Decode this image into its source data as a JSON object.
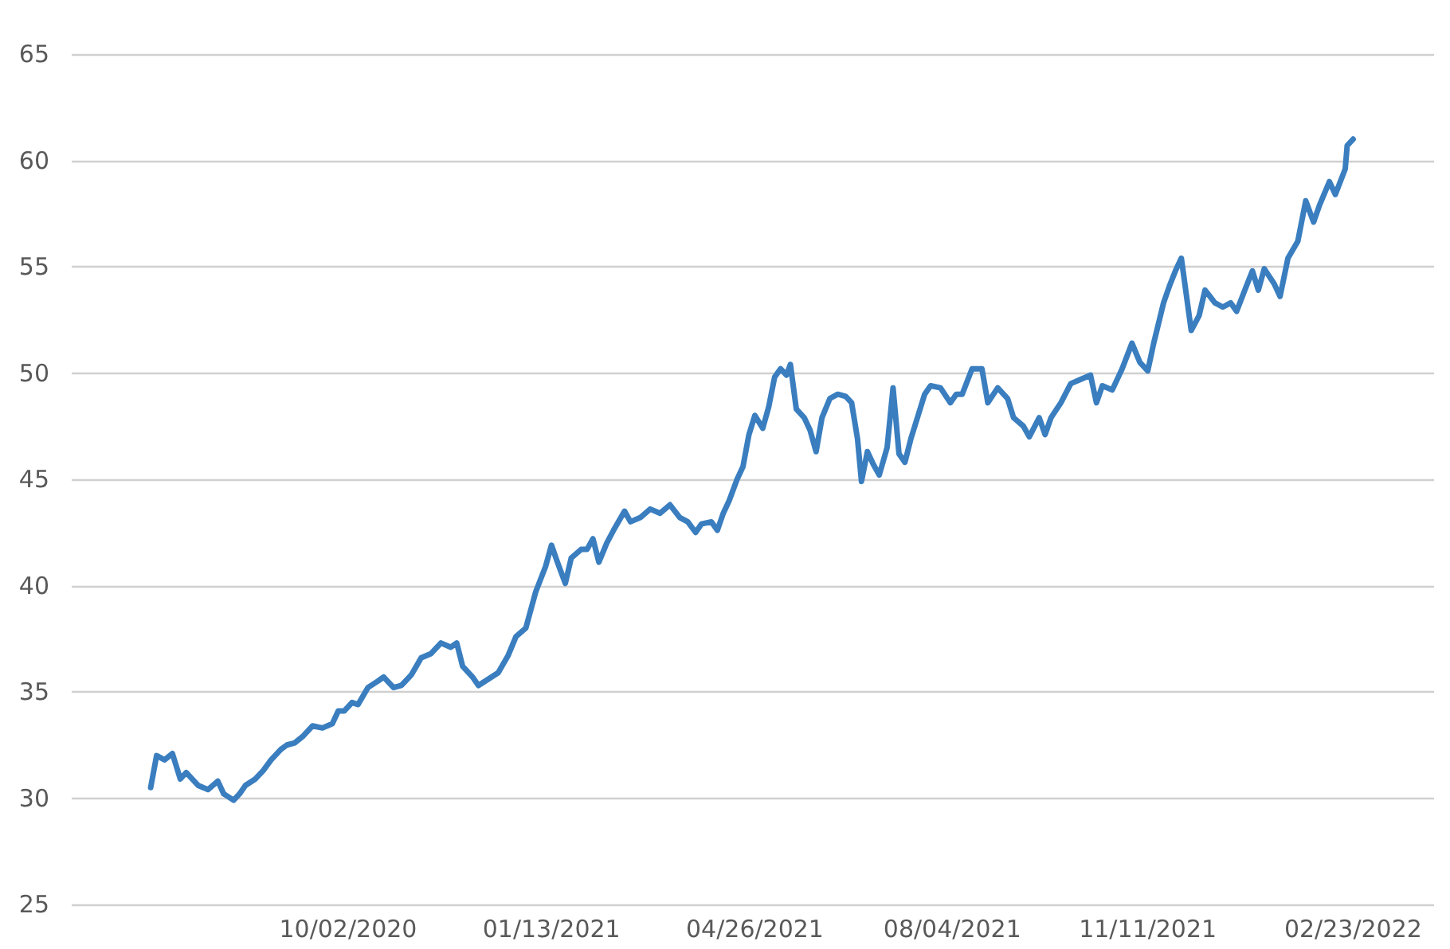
{
  "chart_data": {
    "type": "line",
    "color": "#3a7ebf",
    "grid": "y",
    "marker": "none",
    "line_style": "solid",
    "xlim": [
      "2020-05-15",
      "2022-04-05"
    ],
    "xticks": [
      {
        "value": "2020-10-02",
        "label": "10/02/2020"
      },
      {
        "value": "2021-01-13",
        "label": "01/13/2021"
      },
      {
        "value": "2021-04-26",
        "label": "04/26/2021"
      },
      {
        "value": "2021-08-04",
        "label": "08/04/2021"
      },
      {
        "value": "2021-11-11",
        "label": "11/11/2021"
      },
      {
        "value": "2022-02-23",
        "label": "02/23/2022"
      }
    ],
    "ylim": [
      25,
      65
    ],
    "yticks": [
      25,
      30,
      35,
      40,
      45,
      50,
      55,
      60,
      65
    ],
    "x": [
      "2020-06-24",
      "2020-06-27",
      "2020-07-01",
      "2020-07-05",
      "2020-07-09",
      "2020-07-12",
      "2020-07-15",
      "2020-07-18",
      "2020-07-23",
      "2020-07-28",
      "2020-07-31",
      "2020-08-05",
      "2020-08-08",
      "2020-08-11",
      "2020-08-16",
      "2020-08-20",
      "2020-08-24",
      "2020-08-29",
      "2020-09-01",
      "2020-09-05",
      "2020-09-09",
      "2020-09-14",
      "2020-09-19",
      "2020-09-24",
      "2020-09-27",
      "2020-09-30",
      "2020-10-04",
      "2020-10-07",
      "2020-10-12",
      "2020-10-17",
      "2020-10-20",
      "2020-10-25",
      "2020-10-29",
      "2020-11-03",
      "2020-11-08",
      "2020-11-13",
      "2020-11-18",
      "2020-11-23",
      "2020-11-26",
      "2020-11-29",
      "2020-12-04",
      "2020-12-07",
      "2020-12-12",
      "2020-12-17",
      "2020-12-22",
      "2020-12-26",
      "2020-12-31",
      "2021-01-05",
      "2021-01-10",
      "2021-01-13",
      "2021-01-16",
      "2021-01-20",
      "2021-01-23",
      "2021-01-28",
      "2021-01-31",
      "2021-02-03",
      "2021-02-06",
      "2021-02-10",
      "2021-02-14",
      "2021-02-19",
      "2021-02-22",
      "2021-02-27",
      "2021-03-04",
      "2021-03-09",
      "2021-03-14",
      "2021-03-19",
      "2021-03-23",
      "2021-03-27",
      "2021-03-30",
      "2021-04-04",
      "2021-04-07",
      "2021-04-10",
      "2021-04-13",
      "2021-04-17",
      "2021-04-20",
      "2021-04-23",
      "2021-04-26",
      "2021-04-30",
      "2021-05-03",
      "2021-05-06",
      "2021-05-09",
      "2021-05-12",
      "2021-05-14",
      "2021-05-17",
      "2021-05-21",
      "2021-05-24",
      "2021-05-27",
      "2021-05-30",
      "2021-06-03",
      "2021-06-07",
      "2021-06-11",
      "2021-06-14",
      "2021-06-17",
      "2021-06-19",
      "2021-06-22",
      "2021-06-25",
      "2021-06-28",
      "2021-07-02",
      "2021-07-05",
      "2021-07-08",
      "2021-07-11",
      "2021-07-14",
      "2021-07-18",
      "2021-07-21",
      "2021-07-24",
      "2021-07-29",
      "2021-08-03",
      "2021-08-06",
      "2021-08-09",
      "2021-08-14",
      "2021-08-19",
      "2021-08-22",
      "2021-08-27",
      "2021-09-01",
      "2021-09-04",
      "2021-09-09",
      "2021-09-12",
      "2021-09-17",
      "2021-09-20",
      "2021-09-23",
      "2021-09-28",
      "2021-10-03",
      "2021-10-08",
      "2021-10-13",
      "2021-10-16",
      "2021-10-19",
      "2021-10-24",
      "2021-10-29",
      "2021-11-03",
      "2021-11-07",
      "2021-11-11",
      "2021-11-14",
      "2021-11-19",
      "2021-11-22",
      "2021-11-25",
      "2021-11-28",
      "2021-12-03",
      "2021-12-07",
      "2021-12-10",
      "2021-12-15",
      "2021-12-19",
      "2021-12-23",
      "2021-12-26",
      "2021-12-31",
      "2022-01-03",
      "2022-01-06",
      "2022-01-09",
      "2022-01-14",
      "2022-01-17",
      "2022-01-21",
      "2022-01-26",
      "2022-01-30",
      "2022-02-03",
      "2022-02-06",
      "2022-02-11",
      "2022-02-14",
      "2022-02-19",
      "2022-02-20",
      "2022-02-23"
    ],
    "values": [
      30.5,
      32.0,
      31.8,
      32.1,
      30.9,
      31.2,
      30.9,
      30.6,
      30.4,
      30.8,
      30.2,
      29.9,
      30.2,
      30.6,
      30.9,
      31.3,
      31.8,
      32.3,
      32.5,
      32.6,
      32.9,
      33.4,
      33.3,
      33.5,
      34.1,
      34.1,
      34.5,
      34.4,
      35.2,
      35.5,
      35.7,
      35.2,
      35.3,
      35.8,
      36.6,
      36.8,
      37.3,
      37.1,
      37.3,
      36.2,
      35.7,
      35.3,
      35.6,
      35.9,
      36.7,
      37.6,
      38.0,
      39.7,
      40.9,
      41.9,
      41.1,
      40.1,
      41.3,
      41.7,
      41.7,
      42.2,
      41.1,
      42.0,
      42.7,
      43.5,
      43.0,
      43.2,
      43.6,
      43.4,
      43.8,
      43.2,
      43.0,
      42.5,
      42.9,
      43.0,
      42.6,
      43.4,
      44.0,
      45.0,
      45.6,
      47.1,
      48.0,
      47.4,
      48.4,
      49.8,
      50.2,
      49.9,
      50.4,
      48.3,
      47.9,
      47.3,
      46.3,
      47.9,
      48.8,
      49.0,
      48.9,
      48.6,
      46.9,
      44.9,
      46.3,
      45.7,
      45.2,
      46.5,
      49.3,
      46.2,
      45.8,
      46.9,
      48.1,
      49.0,
      49.4,
      49.3,
      48.6,
      49.0,
      49.0,
      50.2,
      50.2,
      48.6,
      49.3,
      48.8,
      47.9,
      47.5,
      47.0,
      47.9,
      47.1,
      47.9,
      48.6,
      49.5,
      49.7,
      49.9,
      48.6,
      49.4,
      49.2,
      50.2,
      51.4,
      50.5,
      50.1,
      51.4,
      53.3,
      54.1,
      54.8,
      55.4,
      52.0,
      52.7,
      53.9,
      53.3,
      53.1,
      53.3,
      52.9,
      54.1,
      54.8,
      53.9,
      54.9,
      54.2,
      53.6,
      55.4,
      56.2,
      58.1,
      57.1,
      57.9,
      59.0,
      58.4,
      59.6,
      60.7,
      61.0
    ]
  }
}
